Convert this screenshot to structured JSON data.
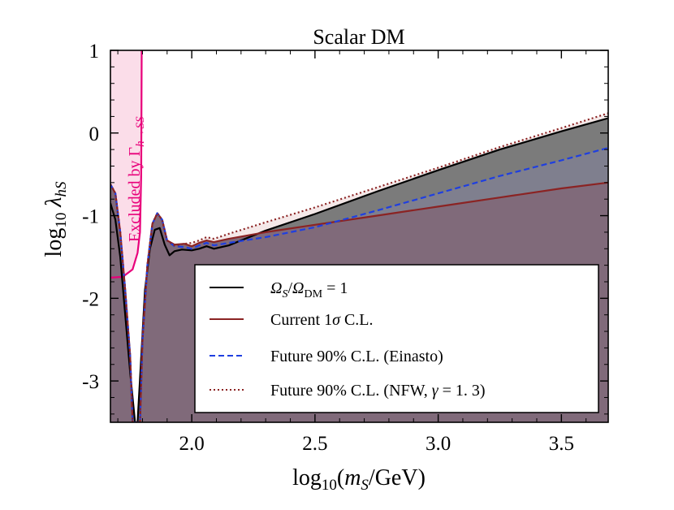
{
  "chart_data": {
    "type": "line",
    "title": "Scalar DM",
    "xlabel": "log10(mS/GeV)",
    "ylabel": "log10 λhS",
    "xlim": [
      1.67,
      3.69
    ],
    "ylim": [
      -3.5,
      1.0
    ],
    "x_ticks": [
      {
        "value": 2.0,
        "label": "2.0"
      },
      {
        "value": 2.5,
        "label": "2.5"
      },
      {
        "value": 3.0,
        "label": "3.0"
      },
      {
        "value": 3.5,
        "label": "3.5"
      }
    ],
    "y_ticks": [
      {
        "value": 1,
        "label": "1"
      },
      {
        "value": 0,
        "label": "0"
      },
      {
        "value": -1,
        "label": "-1"
      },
      {
        "value": -2,
        "label": "-2"
      },
      {
        "value": -3,
        "label": "-3"
      }
    ],
    "exclusion_label": "Excluded by Γh→SS",
    "exclusion_region": {
      "name": "Excluded by Γh→SS",
      "color": "#e8007a",
      "fill": "#fbdde9",
      "boundary": [
        [
          1.67,
          -1.75
        ],
        [
          1.72,
          -1.74
        ],
        [
          1.76,
          -1.65
        ],
        [
          1.78,
          -1.45
        ],
        [
          1.79,
          -1.2
        ],
        [
          1.795,
          -0.5
        ],
        [
          1.797,
          1.0
        ]
      ]
    },
    "series": [
      {
        "name": "Ω_S/Ω_DM = 1",
        "style": "solid",
        "color": "#000000",
        "points": [
          [
            1.67,
            -0.85
          ],
          [
            1.69,
            -1.05
          ],
          [
            1.71,
            -1.5
          ],
          [
            1.73,
            -2.2
          ],
          [
            1.75,
            -2.9
          ],
          [
            1.77,
            -3.5
          ],
          [
            1.78,
            -3.5
          ],
          [
            1.81,
            -1.9
          ],
          [
            1.83,
            -1.4
          ],
          [
            1.85,
            -1.17
          ],
          [
            1.87,
            -1.15
          ],
          [
            1.89,
            -1.35
          ],
          [
            1.91,
            -1.48
          ],
          [
            1.93,
            -1.43
          ],
          [
            1.96,
            -1.41
          ],
          [
            2.0,
            -1.42
          ],
          [
            2.03,
            -1.4
          ],
          [
            2.06,
            -1.37
          ],
          [
            2.09,
            -1.4
          ],
          [
            2.15,
            -1.36
          ],
          [
            2.3,
            -1.18
          ],
          [
            2.5,
            -0.98
          ],
          [
            2.75,
            -0.71
          ],
          [
            3.0,
            -0.45
          ],
          [
            3.25,
            -0.2
          ],
          [
            3.5,
            0.02
          ],
          [
            3.69,
            0.18
          ]
        ]
      },
      {
        "name": "Current 1σ C.L.",
        "style": "solid",
        "color": "#8b2323",
        "points": [
          [
            1.67,
            -0.62
          ],
          [
            1.69,
            -0.73
          ],
          [
            1.71,
            -1.2
          ],
          [
            1.73,
            -1.9
          ],
          [
            1.75,
            -2.7
          ],
          [
            1.76,
            -3.5
          ],
          [
            1.79,
            -3.5
          ],
          [
            1.8,
            -2.5
          ],
          [
            1.82,
            -1.6
          ],
          [
            1.84,
            -1.1
          ],
          [
            1.86,
            -0.97
          ],
          [
            1.88,
            -1.05
          ],
          [
            1.9,
            -1.3
          ],
          [
            1.93,
            -1.35
          ],
          [
            1.97,
            -1.34
          ],
          [
            2.0,
            -1.37
          ],
          [
            2.03,
            -1.33
          ],
          [
            2.06,
            -1.3
          ],
          [
            2.09,
            -1.32
          ],
          [
            2.15,
            -1.28
          ],
          [
            2.3,
            -1.2
          ],
          [
            2.5,
            -1.11
          ],
          [
            2.75,
            -1.0
          ],
          [
            3.0,
            -0.89
          ],
          [
            3.25,
            -0.78
          ],
          [
            3.5,
            -0.67
          ],
          [
            3.69,
            -0.6
          ]
        ]
      },
      {
        "name": "Future 90% C.L. (Einasto)",
        "style": "dashed",
        "color": "#1f3fe0",
        "points": [
          [
            1.67,
            -0.62
          ],
          [
            1.69,
            -0.73
          ],
          [
            1.71,
            -1.2
          ],
          [
            1.73,
            -1.9
          ],
          [
            1.75,
            -2.7
          ],
          [
            1.76,
            -3.5
          ],
          [
            1.79,
            -3.5
          ],
          [
            1.8,
            -2.5
          ],
          [
            1.82,
            -1.6
          ],
          [
            1.84,
            -1.1
          ],
          [
            1.86,
            -0.97
          ],
          [
            1.88,
            -1.05
          ],
          [
            1.9,
            -1.3
          ],
          [
            1.93,
            -1.37
          ],
          [
            1.97,
            -1.38
          ],
          [
            2.0,
            -1.4
          ],
          [
            2.03,
            -1.36
          ],
          [
            2.06,
            -1.33
          ],
          [
            2.09,
            -1.36
          ],
          [
            2.15,
            -1.33
          ],
          [
            2.3,
            -1.26
          ],
          [
            2.5,
            -1.14
          ],
          [
            2.75,
            -0.94
          ],
          [
            3.0,
            -0.73
          ],
          [
            3.25,
            -0.52
          ],
          [
            3.5,
            -0.33
          ],
          [
            3.69,
            -0.18
          ]
        ]
      },
      {
        "name": "Future 90% C.L. (NFW, γ = 1.3)",
        "style": "dotted",
        "color": "#8b2323",
        "points": [
          [
            1.67,
            -0.62
          ],
          [
            1.69,
            -0.73
          ],
          [
            1.71,
            -1.2
          ],
          [
            1.73,
            -1.9
          ],
          [
            1.75,
            -2.7
          ],
          [
            1.76,
            -3.5
          ],
          [
            1.79,
            -3.5
          ],
          [
            1.8,
            -2.5
          ],
          [
            1.82,
            -1.6
          ],
          [
            1.84,
            -1.1
          ],
          [
            1.86,
            -0.97
          ],
          [
            1.88,
            -1.05
          ],
          [
            1.9,
            -1.3
          ],
          [
            1.93,
            -1.36
          ],
          [
            1.97,
            -1.34
          ],
          [
            2.0,
            -1.33
          ],
          [
            2.03,
            -1.3
          ],
          [
            2.06,
            -1.26
          ],
          [
            2.09,
            -1.28
          ],
          [
            2.15,
            -1.22
          ],
          [
            2.3,
            -1.08
          ],
          [
            2.5,
            -0.9
          ],
          [
            2.75,
            -0.66
          ],
          [
            3.0,
            -0.42
          ],
          [
            3.25,
            -0.17
          ],
          [
            3.5,
            0.06
          ],
          [
            3.69,
            0.24
          ]
        ]
      }
    ],
    "legend": {
      "position": "bottom-right",
      "entries": [
        {
          "label": "ΩS/ΩDM = 1",
          "style": "solid",
          "color": "#000000"
        },
        {
          "label": "Current 1σ C.L.",
          "style": "solid",
          "color": "#8b2323"
        },
        {
          "label": "Future 90% C.L. (Einasto)",
          "style": "dashed",
          "color": "#1f3fe0"
        },
        {
          "label": "Future 90% C.L. (NFW, γ = 1. 3)",
          "style": "dotted",
          "color": "#8b2323"
        }
      ]
    }
  }
}
